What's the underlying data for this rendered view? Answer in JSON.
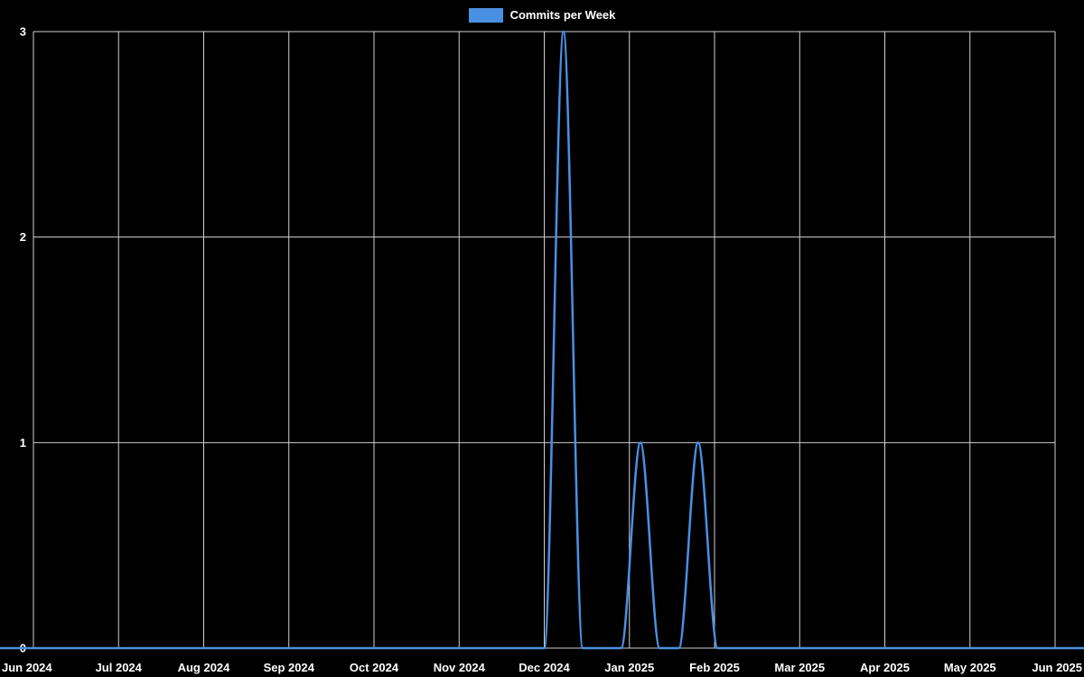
{
  "chart_data": {
    "type": "line",
    "title": "",
    "legend": {
      "position": "top-center",
      "items": [
        {
          "label": "Commits per Week",
          "color": "#4a90e2"
        }
      ]
    },
    "grid": true,
    "colors": {
      "background": "#000000",
      "grid": "#d0d0d0",
      "text": "#ffffff",
      "line": "#4a90e2"
    },
    "ylim": [
      0,
      3
    ],
    "y_ticks": [
      0,
      1,
      2,
      3
    ],
    "x_range": [
      "2024-06-01",
      "2025-06-01"
    ],
    "x_tick_labels": [
      "Jun 2024",
      "Jul 2024",
      "Aug 2024",
      "Sep 2024",
      "Oct 2024",
      "Nov 2024",
      "Dec 2024",
      "Jan 2025",
      "Feb 2025",
      "Mar 2025",
      "Apr 2025",
      "May 2025",
      "Jun 2025"
    ],
    "x": [
      "2024-05-19",
      "2024-05-26",
      "2024-06-02",
      "2024-06-09",
      "2024-06-16",
      "2024-06-23",
      "2024-06-30",
      "2024-07-07",
      "2024-07-14",
      "2024-07-21",
      "2024-07-28",
      "2024-08-04",
      "2024-08-11",
      "2024-08-18",
      "2024-08-25",
      "2024-09-01",
      "2024-09-08",
      "2024-09-15",
      "2024-09-22",
      "2024-09-29",
      "2024-10-06",
      "2024-10-13",
      "2024-10-20",
      "2024-10-27",
      "2024-11-03",
      "2024-11-10",
      "2024-11-17",
      "2024-11-24",
      "2024-12-01",
      "2024-12-08",
      "2024-12-15",
      "2024-12-22",
      "2024-12-29",
      "2025-01-05",
      "2025-01-12",
      "2025-01-19",
      "2025-01-26",
      "2025-02-02",
      "2025-02-09",
      "2025-02-16",
      "2025-02-23",
      "2025-03-02",
      "2025-03-09",
      "2025-03-16",
      "2025-03-23",
      "2025-03-30",
      "2025-04-06",
      "2025-04-13",
      "2025-04-20",
      "2025-04-27",
      "2025-05-04",
      "2025-05-11",
      "2025-05-18",
      "2025-05-25",
      "2025-06-01",
      "2025-06-08",
      "2025-06-15"
    ],
    "series": [
      {
        "name": "Commits per Week",
        "color": "#4a90e2",
        "line_width": 2.5,
        "smooth": true,
        "values": [
          0,
          0,
          0,
          0,
          0,
          0,
          0,
          0,
          0,
          0,
          0,
          0,
          0,
          0,
          0,
          0,
          0,
          0,
          0,
          0,
          0,
          0,
          0,
          0,
          0,
          0,
          0,
          0,
          0,
          3,
          0,
          0,
          0,
          1,
          0,
          0,
          1,
          0,
          0,
          0,
          0,
          0,
          0,
          0,
          0,
          0,
          0,
          0,
          0,
          0,
          0,
          0,
          0,
          0,
          0,
          0,
          0
        ]
      }
    ]
  }
}
